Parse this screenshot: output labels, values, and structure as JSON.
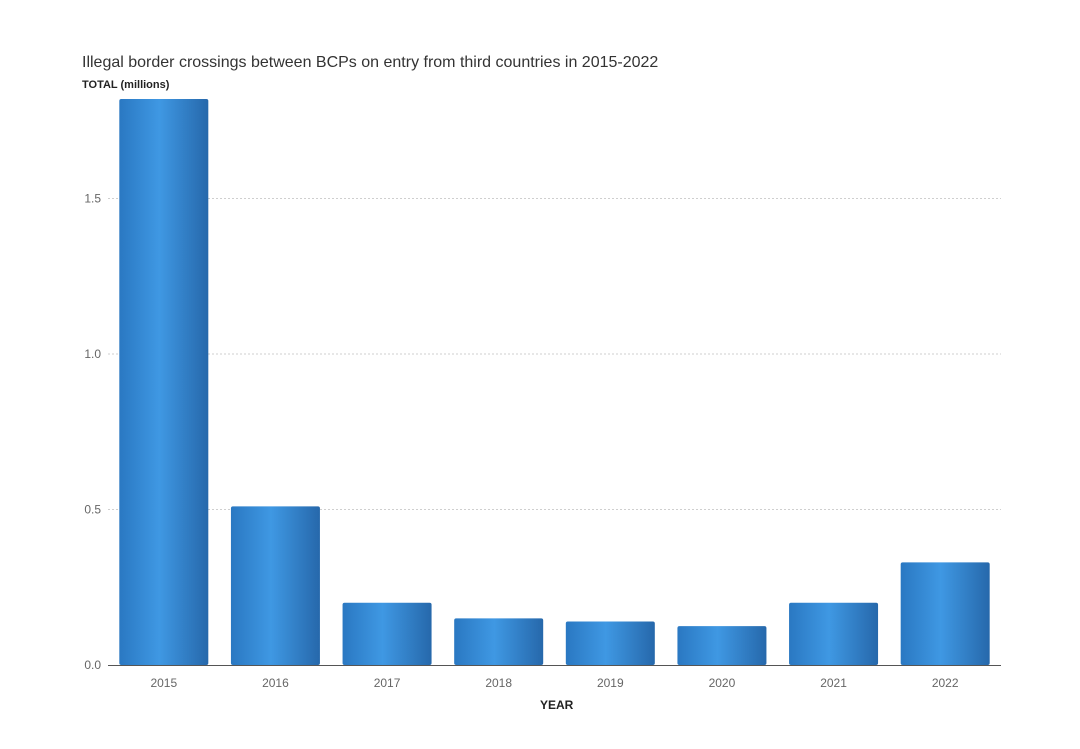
{
  "chart_data": {
    "type": "bar",
    "title": "Illegal border crossings between BCPs on entry from third countries in 2015-2022",
    "ylabel_bold": "TOTAL",
    "ylabel_unit": "(millions)",
    "xlabel": "YEAR",
    "categories": [
      "2015",
      "2016",
      "2017",
      "2018",
      "2019",
      "2020",
      "2021",
      "2022"
    ],
    "values": [
      1.82,
      0.51,
      0.2,
      0.15,
      0.14,
      0.125,
      0.2,
      0.33
    ],
    "yticks": [
      "0.0",
      "0.5",
      "1.0",
      "1.5"
    ],
    "ylim": [
      0,
      1.85
    ],
    "grid": true,
    "legend": "none",
    "bar_color": "#2f86d4"
  }
}
